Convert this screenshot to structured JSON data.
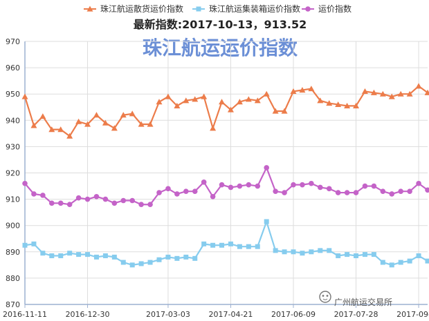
{
  "chart_data": {
    "type": "line",
    "title": "珠江航运运价指数",
    "subtitle": "最新指数:2017-10-13，913.52",
    "xlabel": "",
    "ylabel": "",
    "ylim": [
      870,
      970
    ],
    "yticks": [
      870,
      880,
      890,
      900,
      910,
      920,
      930,
      940,
      950,
      960,
      970
    ],
    "xtick_labels": [
      "2016-11-11",
      "2016-12-30",
      "2017-03-03",
      "2017-04-21",
      "2017-06-09",
      "2017-07-28",
      "2017-09-15"
    ],
    "xtick_positions": [
      0,
      7,
      16,
      23,
      30,
      37,
      44
    ],
    "grid": true,
    "legend_position": "top",
    "series": [
      {
        "name": "珠江航运散货运价指数",
        "color": "#ec7c4a",
        "marker": "triangle",
        "values": [
          949,
          938,
          941.5,
          936.5,
          936.5,
          934,
          939.5,
          938.5,
          942,
          939,
          937,
          942,
          942.5,
          938.5,
          938.5,
          947,
          949,
          945.5,
          947.5,
          948,
          949,
          937,
          947,
          944,
          947,
          948,
          947.5,
          950,
          943.5,
          943.5,
          951,
          951.5,
          952,
          947.5,
          946.5,
          946,
          945.5,
          945.5,
          951,
          950.5,
          950,
          949,
          950,
          950,
          953,
          950.5
        ]
      },
      {
        "name": "珠江航运集装箱运价指数",
        "color": "#86ccee",
        "marker": "square",
        "values": [
          892.5,
          893,
          889.5,
          888.5,
          888.5,
          889.5,
          889,
          889,
          888,
          888.5,
          888,
          886,
          885,
          885.5,
          886,
          887,
          888,
          887.5,
          888,
          887.5,
          893,
          892.5,
          892.5,
          893,
          892,
          892,
          892,
          901.5,
          890.5,
          890,
          890,
          889.5,
          890,
          890.5,
          890.5,
          888.5,
          889,
          888.5,
          889,
          889,
          886,
          885,
          886,
          886.5,
          888.5,
          886.5
        ]
      },
      {
        "name": "运价指数",
        "color": "#c463c8",
        "marker": "circle",
        "values": [
          916,
          912,
          911.5,
          908.5,
          908.5,
          908,
          910.5,
          910,
          911,
          910,
          908.5,
          909.5,
          909.5,
          908,
          908,
          912.5,
          914,
          912,
          913,
          913,
          916.5,
          911,
          915.5,
          914.5,
          915,
          915.5,
          915,
          922,
          913,
          912.5,
          915.5,
          915.5,
          916,
          914.5,
          914,
          912.5,
          912.5,
          912.5,
          915,
          915,
          913,
          912,
          913,
          913,
          916,
          913.5
        ]
      }
    ]
  },
  "watermark": {
    "text": "广州航运交易所",
    "icon": "wechat-icon"
  }
}
